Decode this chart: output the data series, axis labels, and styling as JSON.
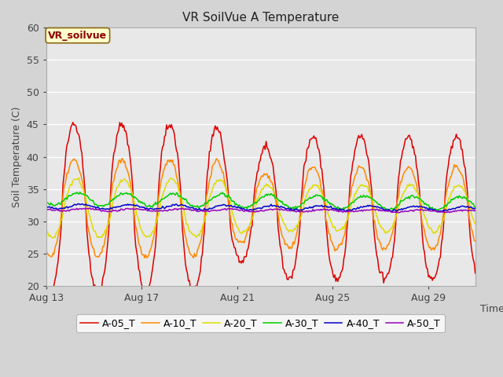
{
  "title": "VR SoilVue A Temperature",
  "ylabel": "Soil Temperature (C)",
  "xlabel": "Time",
  "ylim": [
    20,
    60
  ],
  "fig_bg_color": "#d4d4d4",
  "plot_bg_color": "#e8e8e8",
  "legend_label": "VR_soilvue",
  "legend_box_facecolor": "#ffffcc",
  "legend_box_edgecolor": "#8b6914",
  "legend_text_color": "#8b0000",
  "series": [
    {
      "label": "A-05_T",
      "color": "#dd0000"
    },
    {
      "label": "A-10_T",
      "color": "#ff8800"
    },
    {
      "label": "A-20_T",
      "color": "#dddd00"
    },
    {
      "label": "A-30_T",
      "color": "#00cc00"
    },
    {
      "label": "A-40_T",
      "color": "#0000cc"
    },
    {
      "label": "A-50_T",
      "color": "#9900bb"
    }
  ],
  "x_ticks": [
    "Aug 13",
    "Aug 17",
    "Aug 21",
    "Aug 25",
    "Aug 29"
  ],
  "x_tick_positions": [
    0,
    96,
    192,
    288,
    384
  ],
  "n_points": 432,
  "hours_per_point": 0.5,
  "yticks": [
    20,
    25,
    30,
    35,
    40,
    45,
    50,
    55,
    60
  ]
}
